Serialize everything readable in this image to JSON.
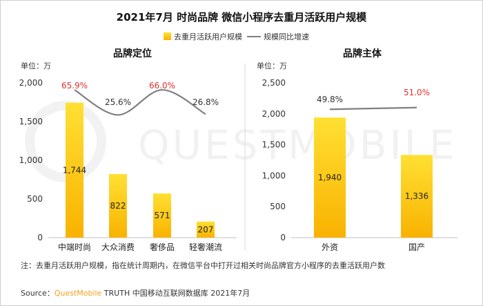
{
  "title": "2021年7月 时尚品牌 微信小程序去重月活跃用户规模",
  "legend": {
    "bar_label": "去重月活跃用户规模",
    "line_label": "规模同比增速"
  },
  "watermark": "QUESTMOBILE",
  "note": "注：去重月活跃用户规模，指在统计周期内，在微信平台中打开过相关时尚品牌官方小程序的去重活跃用户数",
  "source": {
    "prefix": "Source：",
    "brand": "QuestMobile",
    "rest": " TRUTH 中国移动互联网数据库 2021年7月"
  },
  "colors": {
    "bar_top": "#ffe033",
    "bar_bottom": "#f9b200",
    "line": "#7f7f7f",
    "highlight": "#e0312f",
    "axis": "#bfbfbf"
  },
  "chart_data": [
    {
      "type": "bar",
      "title": "品牌定位",
      "unit": "单位：万",
      "categories": [
        "中端时尚",
        "大众消费",
        "奢侈品",
        "轻奢潮流"
      ],
      "values": [
        1744,
        822,
        571,
        207
      ],
      "value_labels": [
        "1,744",
        "822",
        "571",
        "207"
      ],
      "yticks": [
        "0",
        "500",
        "1,000",
        "1,500",
        "2,000"
      ],
      "ylim": [
        0,
        2000
      ],
      "line_series": {
        "name": "规模同比增速",
        "values": [
          65.9,
          25.6,
          66.0,
          26.8
        ],
        "labels": [
          "65.9%",
          "25.6%",
          "66.0%",
          "26.8%"
        ],
        "highlight": [
          true,
          false,
          true,
          false
        ]
      }
    },
    {
      "type": "bar",
      "title": "品牌主体",
      "unit": "单位：万",
      "categories": [
        "外资",
        "国产"
      ],
      "values": [
        1940,
        1336
      ],
      "value_labels": [
        "1,940",
        "1,336"
      ],
      "yticks": [
        "0",
        "500",
        "1,000",
        "1,500",
        "2,000",
        "2,500"
      ],
      "ylim": [
        0,
        2500
      ],
      "line_series": {
        "name": "规模同比增速",
        "values": [
          49.8,
          51.0
        ],
        "labels": [
          "49.8%",
          "51.0%"
        ],
        "highlight": [
          false,
          true
        ]
      }
    }
  ]
}
